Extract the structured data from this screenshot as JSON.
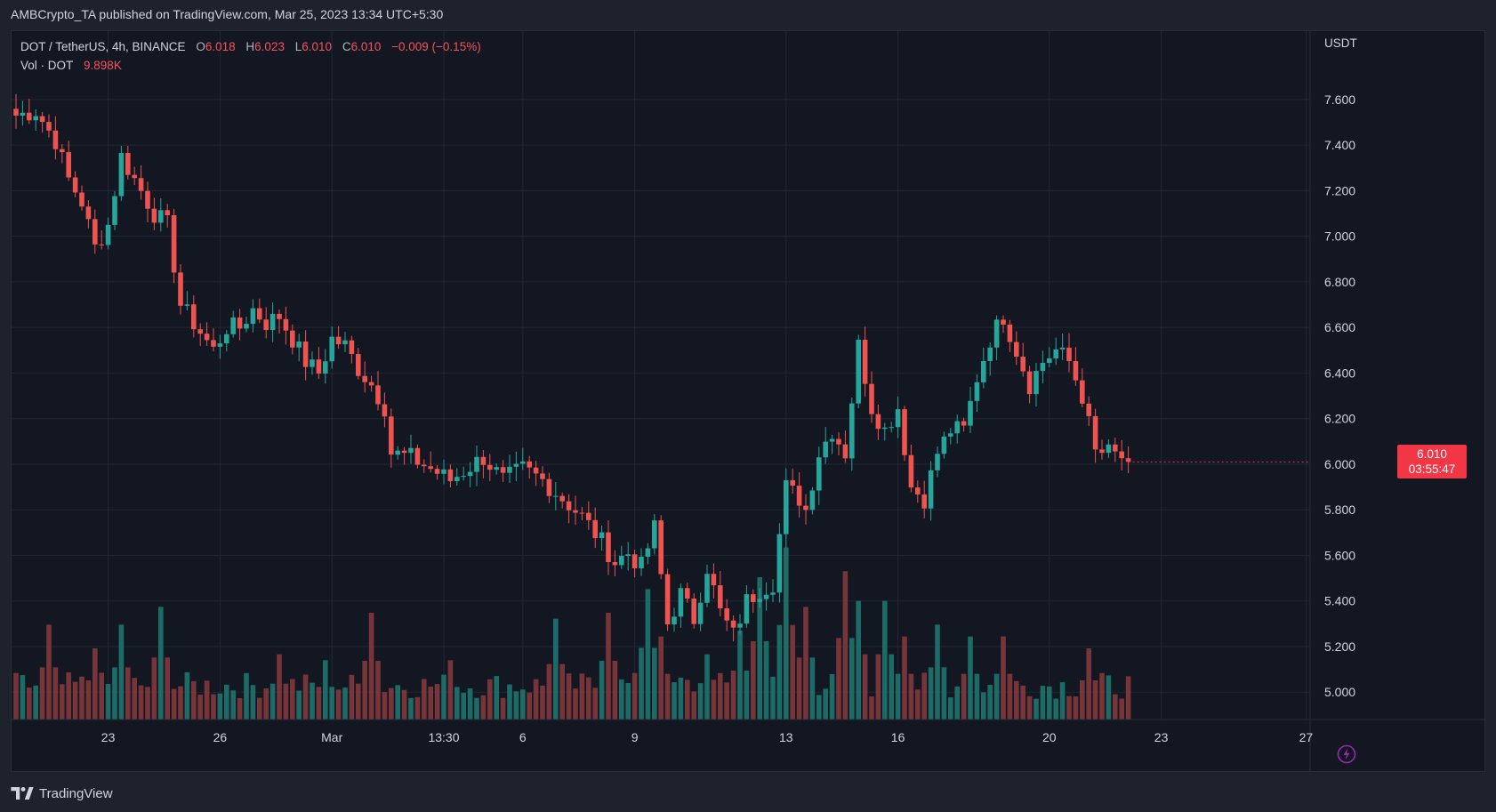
{
  "header": {
    "publisher": "AMBCrypto_TA",
    "published_text": "published on TradingView.com, Mar 25, 2023 13:34 UTC+5:30"
  },
  "legend": {
    "symbol": "DOT / TetherUS, 4h, BINANCE",
    "open_label": "O",
    "open": "6.018",
    "high_label": "H",
    "high": "6.023",
    "low_label": "L",
    "low": "6.010",
    "close_label": "C",
    "close": "6.010",
    "change": "−0.009 (−0.15%)",
    "volume_label": "Vol · DOT",
    "volume": "9.898K"
  },
  "last_price": {
    "value": "6.010",
    "countdown": "03:55:47"
  },
  "footer": {
    "brand": "TradingView"
  },
  "colors": {
    "up": "#26a69a",
    "down": "#ef5350",
    "up_volume": "#1f7a72",
    "down_volume": "#8a3b3e",
    "background": "#131722",
    "grid": "#232733"
  },
  "icons": [
    "tradingview-logo-icon",
    "lightning-icon"
  ],
  "chart_data": {
    "type": "candlestick",
    "title": "DOT / TetherUS, 4h, BINANCE",
    "y_unit": "USDT",
    "ylim": [
      4.88,
      7.9
    ],
    "y_ticks": [
      "7.600",
      "7.400",
      "7.200",
      "7.000",
      "6.800",
      "6.600",
      "6.400",
      "6.200",
      "6.000",
      "5.800",
      "5.600",
      "5.400",
      "5.200",
      "5.000"
    ],
    "x_ticks": [
      "23",
      "26",
      "Mar",
      "13:30",
      "6",
      "9",
      "13",
      "16",
      "20",
      "23",
      "27"
    ],
    "grid": true,
    "candle_count": 170,
    "volume_unit": "DOT",
    "anchors_close": [
      [
        0,
        7.53
      ],
      [
        3,
        7.55
      ],
      [
        6,
        7.42
      ],
      [
        8,
        7.25
      ],
      [
        10,
        7.15
      ],
      [
        12,
        6.95
      ],
      [
        14,
        7.05
      ],
      [
        16,
        7.35
      ],
      [
        18,
        7.25
      ],
      [
        21,
        7.1
      ],
      [
        23,
        7.05
      ],
      [
        25,
        6.7
      ],
      [
        28,
        6.58
      ],
      [
        30,
        6.5
      ],
      [
        32,
        6.6
      ],
      [
        34,
        6.6
      ],
      [
        36,
        6.68
      ],
      [
        38,
        6.62
      ],
      [
        40,
        6.65
      ],
      [
        42,
        6.55
      ],
      [
        44,
        6.45
      ],
      [
        46,
        6.4
      ],
      [
        48,
        6.55
      ],
      [
        50,
        6.52
      ],
      [
        52,
        6.42
      ],
      [
        54,
        6.35
      ],
      [
        56,
        6.25
      ],
      [
        57,
        6.05
      ],
      [
        60,
        6.03
      ],
      [
        63,
        5.98
      ],
      [
        66,
        5.93
      ],
      [
        68,
        5.97
      ],
      [
        71,
        6.03
      ],
      [
        74,
        5.93
      ],
      [
        77,
        5.98
      ],
      [
        80,
        5.93
      ],
      [
        83,
        5.85
      ],
      [
        86,
        5.77
      ],
      [
        89,
        5.66
      ],
      [
        91,
        5.57
      ],
      [
        93,
        5.61
      ],
      [
        95,
        5.55
      ],
      [
        97,
        5.72
      ],
      [
        99,
        5.3
      ],
      [
        101,
        5.43
      ],
      [
        103,
        5.32
      ],
      [
        105,
        5.55
      ],
      [
        107,
        5.35
      ],
      [
        109,
        5.25
      ],
      [
        111,
        5.4
      ],
      [
        113,
        5.45
      ],
      [
        115,
        5.48
      ],
      [
        117,
        5.9
      ],
      [
        119,
        5.85
      ],
      [
        120,
        5.8
      ],
      [
        122,
        6.05
      ],
      [
        124,
        6.15
      ],
      [
        126,
        6.05
      ],
      [
        128,
        6.52
      ],
      [
        130,
        6.25
      ],
      [
        132,
        6.15
      ],
      [
        134,
        6.25
      ],
      [
        136,
        5.9
      ],
      [
        138,
        5.85
      ],
      [
        140,
        6.05
      ],
      [
        142,
        6.15
      ],
      [
        144,
        6.15
      ],
      [
        146,
        6.38
      ],
      [
        148,
        6.55
      ],
      [
        150,
        6.65
      ],
      [
        152,
        6.5
      ],
      [
        154,
        6.35
      ],
      [
        156,
        6.45
      ],
      [
        158,
        6.5
      ],
      [
        160,
        6.45
      ],
      [
        162,
        6.3
      ],
      [
        164,
        6.05
      ],
      [
        166,
        6.05
      ],
      [
        168,
        6.03
      ],
      [
        169,
        6.01
      ]
    ],
    "volume_spikes": [
      [
        5,
        1.6
      ],
      [
        12,
        1.2
      ],
      [
        16,
        1.6
      ],
      [
        22,
        1.9
      ],
      [
        40,
        1.1
      ],
      [
        47,
        1.0
      ],
      [
        54,
        1.8
      ],
      [
        66,
        1.0
      ],
      [
        82,
        1.7
      ],
      [
        90,
        1.8
      ],
      [
        96,
        2.2
      ],
      [
        98,
        1.4
      ],
      [
        105,
        1.1
      ],
      [
        110,
        1.5
      ],
      [
        113,
        2.4
      ],
      [
        117,
        2.9
      ],
      [
        120,
        1.9
      ],
      [
        126,
        2.5
      ],
      [
        128,
        2.0
      ],
      [
        132,
        2.0
      ],
      [
        135,
        1.4
      ],
      [
        140,
        1.6
      ],
      [
        145,
        1.4
      ],
      [
        150,
        1.4
      ],
      [
        163,
        1.2
      ],
      [
        169,
        0.4
      ]
    ],
    "volume_max_label_ref": "relative"
  }
}
